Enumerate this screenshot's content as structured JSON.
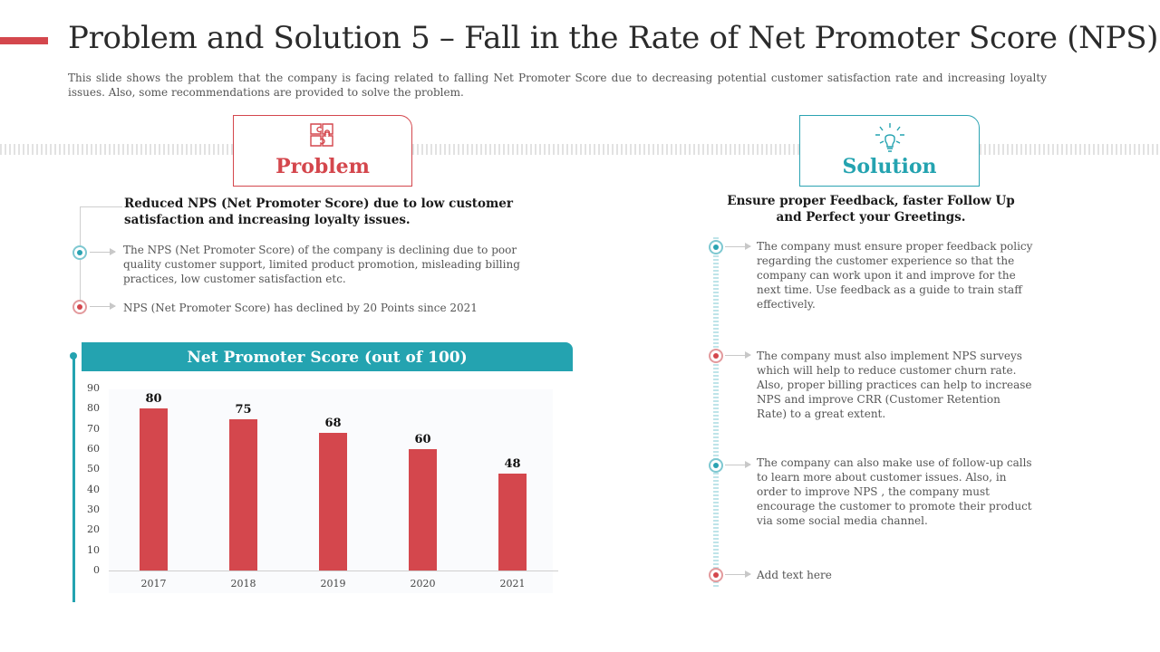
{
  "slide": {
    "title": "Problem and Solution 5 – Fall in the Rate of Net Promoter Score (NPS)",
    "subtitle": "This slide shows the problem that the company is facing related to falling Net Promoter Score due to decreasing potential customer satisfaction rate and increasing loyalty issues. Also, some recommendations are provided to solve the problem.",
    "accent_color": "#d4474d",
    "teal_color": "#24a3b0"
  },
  "problem": {
    "card_label": "Problem",
    "icon": "puzzle-icon",
    "heading": "Reduced NPS (Net Promoter Score) due to low customer satisfaction and increasing loyalty issues.",
    "points": [
      "The NPS (Net Promoter Score) of the company is declining due to poor quality customer support, limited product promotion, misleading billing practices, low customer satisfaction etc.",
      "NPS (Net Promoter Score) has declined by 20 Points since 2021"
    ]
  },
  "solution": {
    "card_label": "Solution",
    "icon": "hand-idea-icon",
    "heading": "Ensure proper Feedback, faster Follow Up and Perfect your Greetings.",
    "points": [
      "The company must ensure proper feedback policy regarding the customer experience so that the company can work upon it and improve for the next time. Use feedback as a guide to train staff effectively.",
      "The company must also implement NPS surveys which will help to reduce customer churn rate. Also, proper billing practices can help to increase NPS and improve CRR (Customer Retention Rate) to a great extent.",
      "The company can also make use of follow-up calls to learn more about customer issues. Also, in order to improve NPS , the company must encourage the customer to promote their product via some social media channel.",
      "Add text here"
    ]
  },
  "chart_data": {
    "type": "bar",
    "title": "Net Promoter Score (out of 100)",
    "categories": [
      "2017",
      "2018",
      "2019",
      "2020",
      "2021"
    ],
    "values": [
      80,
      75,
      68,
      60,
      48
    ],
    "data_labels": [
      "80",
      "75",
      "68",
      "60",
      "48"
    ],
    "ylim": [
      0,
      90
    ],
    "yticks": [
      "0",
      "10",
      "20",
      "30",
      "40",
      "50",
      "60",
      "70",
      "80",
      "90"
    ],
    "bar_color": "#d4474d",
    "grid": false
  }
}
